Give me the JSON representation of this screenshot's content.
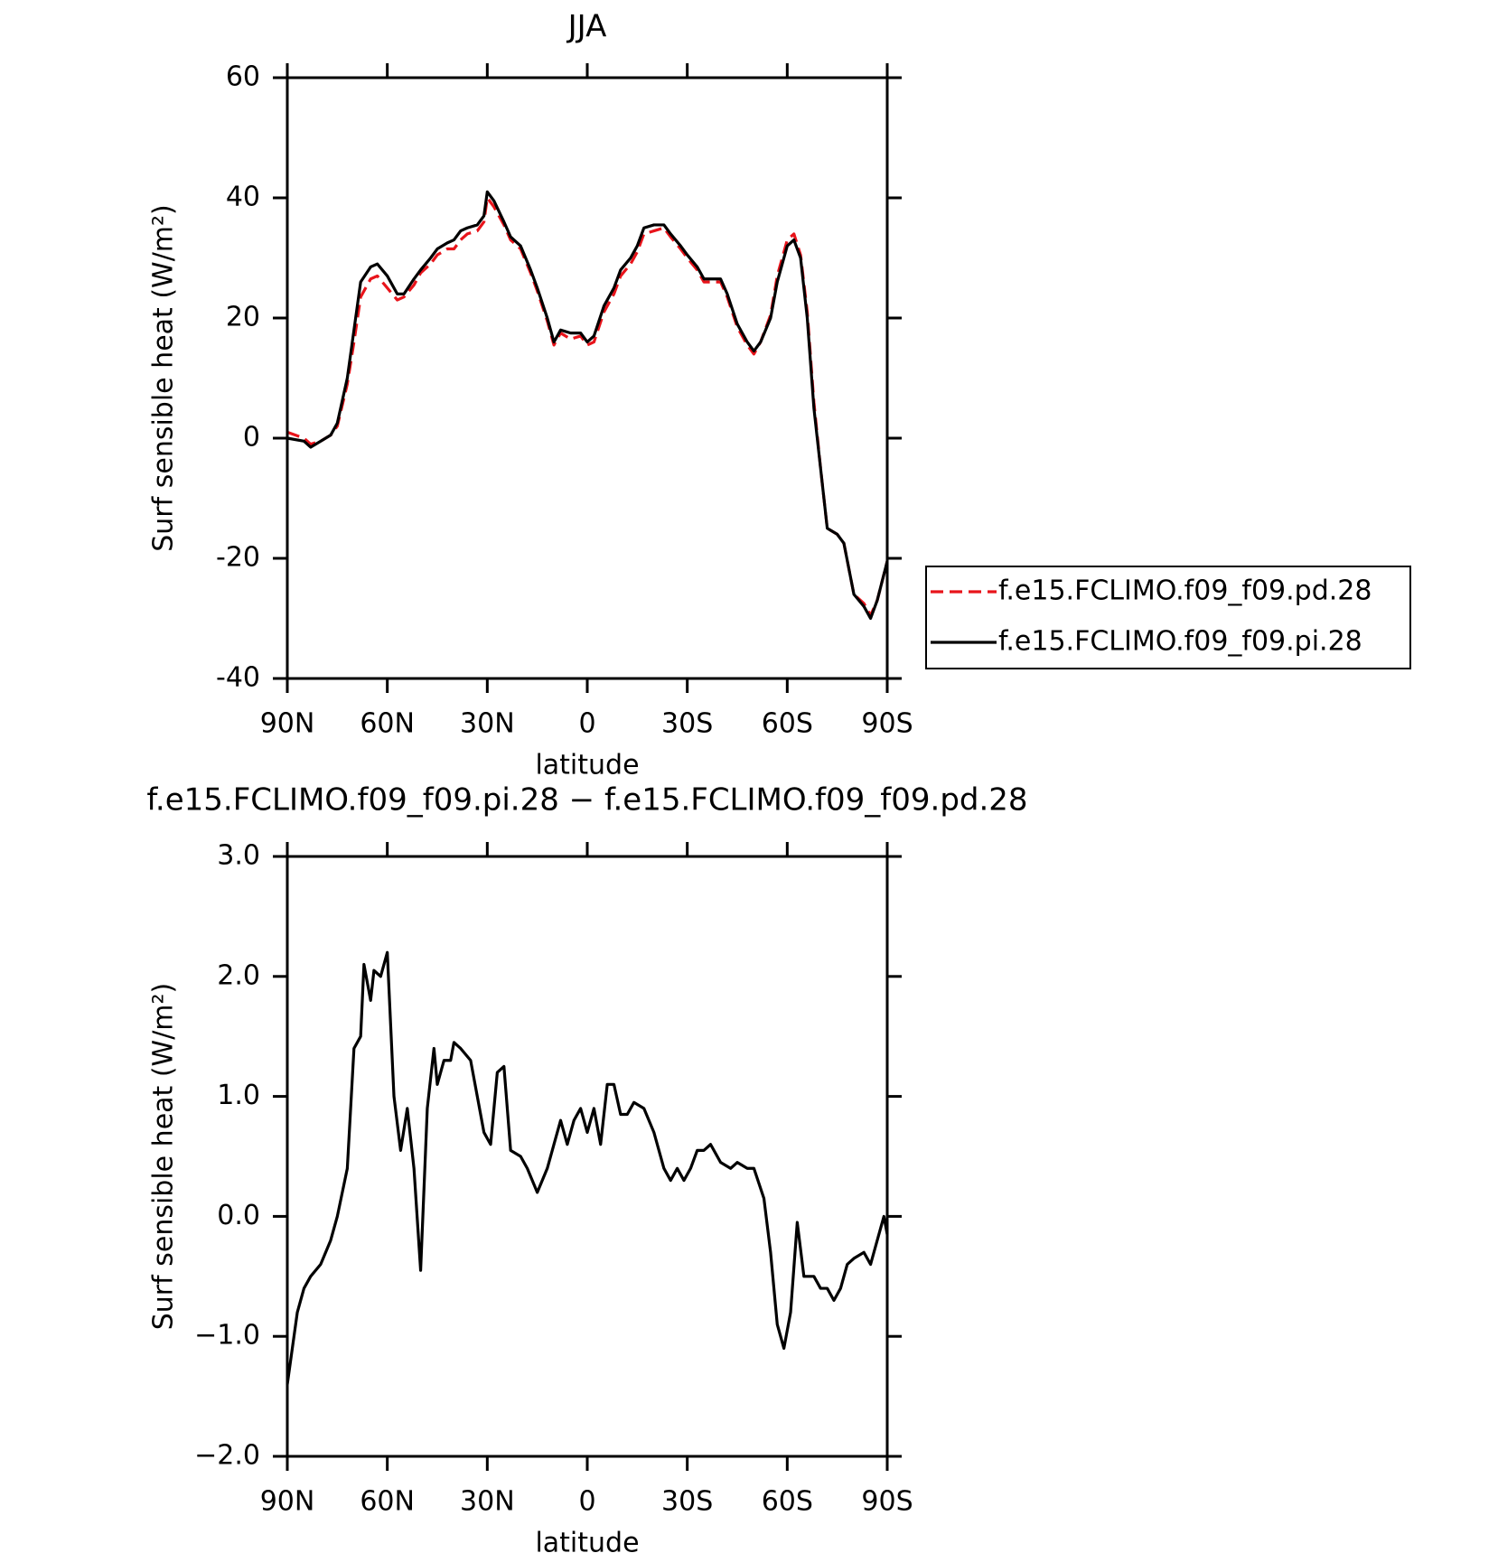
{
  "chart_data": [
    {
      "type": "line",
      "title": "JJA",
      "xlabel": "latitude",
      "ylabel": "Surf sensible heat (W/m²)",
      "x": [
        90,
        85,
        83,
        80,
        77,
        75,
        72,
        70,
        68,
        65,
        63,
        60,
        57,
        55,
        52,
        50,
        47,
        45,
        42,
        40,
        38,
        36,
        33,
        31,
        30,
        28,
        25,
        23,
        20,
        17,
        15,
        12,
        10,
        8,
        5,
        2,
        0,
        -2,
        -5,
        -8,
        -10,
        -13,
        -15,
        -17,
        -20,
        -23,
        -25,
        -28,
        -30,
        -33,
        -35,
        -38,
        -40,
        -42,
        -45,
        -48,
        -50,
        -52,
        -55,
        -57,
        -60,
        -62,
        -64,
        -66,
        -68,
        -70,
        -72,
        -75,
        -77,
        -80,
        -83,
        -85,
        -87,
        -90
      ],
      "series": [
        {
          "name": "f.e15.FCLIMO.f09_f09.pd.28",
          "color": "#e8141b",
          "dash": true,
          "values": [
            1,
            0,
            -1,
            -0.5,
            0.5,
            2,
            9,
            16,
            23.5,
            26.5,
            27,
            25,
            23,
            23.5,
            25.5,
            27.5,
            29,
            30.5,
            31.5,
            31.5,
            33,
            34,
            34.5,
            36,
            40,
            38.5,
            35.5,
            33,
            31.5,
            27.5,
            24.5,
            19.5,
            15.5,
            17.5,
            16.5,
            17,
            15.5,
            16,
            21,
            24,
            27,
            29,
            31,
            34,
            34.5,
            35,
            33.5,
            31.5,
            30,
            28,
            26,
            26,
            26,
            23.5,
            18.5,
            15.5,
            14,
            16,
            20.5,
            27,
            33,
            34,
            30.5,
            21,
            6,
            -5,
            -15,
            -16,
            -17.5,
            -26,
            -27.5,
            -29.5,
            -27,
            -20.5
          ]
        },
        {
          "name": "f.e15.FCLIMO.f09_f09.pi.28",
          "color": "#000000",
          "dash": false,
          "values": [
            0,
            -0.5,
            -1.5,
            -0.5,
            0.5,
            2.5,
            10,
            18,
            26,
            28.5,
            29,
            27,
            24,
            24,
            26.5,
            28,
            30,
            31.5,
            32.5,
            33,
            34.5,
            35,
            35.5,
            37,
            41,
            39.5,
            36,
            33.5,
            32,
            28,
            25,
            20,
            16,
            18,
            17.5,
            17.5,
            16,
            17,
            22,
            25,
            28,
            30,
            32,
            35,
            35.5,
            35.5,
            34,
            32,
            30.5,
            28.5,
            26.5,
            26.5,
            26.5,
            24,
            19,
            16,
            14.5,
            16,
            20,
            26,
            32,
            33,
            30,
            20,
            5,
            -5,
            -15,
            -16,
            -17.5,
            -26,
            -28,
            -30,
            -27,
            -20.5
          ]
        }
      ],
      "xlim": [
        90,
        -90
      ],
      "xticks": [
        {
          "value": 90,
          "label": "90N"
        },
        {
          "value": 60,
          "label": "60N"
        },
        {
          "value": 30,
          "label": "30N"
        },
        0,
        {
          "value": -30,
          "label": "30S"
        },
        {
          "value": -60,
          "label": "60S"
        },
        {
          "value": -90,
          "label": "90S"
        }
      ],
      "ylim": [
        -40,
        60
      ],
      "yticks": [
        -40,
        -20,
        0,
        20,
        40,
        60
      ],
      "legend": "right"
    },
    {
      "type": "line",
      "title": "f.e15.FCLIMO.f09_f09.pi.28 − f.e15.FCLIMO.f09_f09.pd.28",
      "xlabel": "latitude",
      "ylabel": "Surf sensible heat (W/m²)",
      "x": [
        90,
        87,
        85,
        83,
        80,
        77,
        75,
        72,
        70,
        68,
        67,
        65,
        64,
        62,
        60,
        58,
        56,
        54,
        52,
        50,
        48,
        46,
        45,
        43,
        41,
        40,
        38,
        35,
        33,
        31,
        29,
        27,
        25,
        23,
        20,
        18,
        15,
        12,
        10,
        8,
        6,
        4,
        2,
        0,
        -2,
        -4,
        -6,
        -8,
        -10,
        -12,
        -14,
        -17,
        -20,
        -23,
        -25,
        -27,
        -29,
        -31,
        -33,
        -35,
        -37,
        -40,
        -43,
        -45,
        -48,
        -50,
        -53,
        -55,
        -57,
        -59,
        -61,
        -63,
        -65,
        -68,
        -70,
        -72,
        -74,
        -76,
        -78,
        -80,
        -83,
        -85,
        -87,
        -89,
        -90
      ],
      "series": [
        {
          "color": "#000000",
          "dash": false,
          "values": [
            -1.4,
            -0.8,
            -0.6,
            -0.5,
            -0.4,
            -0.2,
            0.0,
            0.4,
            1.4,
            1.5,
            2.1,
            1.8,
            2.05,
            2.0,
            2.2,
            1.0,
            0.55,
            0.9,
            0.4,
            -0.45,
            0.9,
            1.4,
            1.1,
            1.3,
            1.3,
            1.45,
            1.4,
            1.3,
            1.0,
            0.7,
            0.6,
            1.2,
            1.25,
            0.55,
            0.5,
            0.4,
            0.2,
            0.4,
            0.6,
            0.8,
            0.6,
            0.8,
            0.9,
            0.7,
            0.9,
            0.6,
            1.1,
            1.1,
            0.85,
            0.85,
            0.95,
            0.9,
            0.7,
            0.4,
            0.3,
            0.4,
            0.3,
            0.4,
            0.55,
            0.55,
            0.6,
            0.45,
            0.4,
            0.45,
            0.4,
            0.4,
            0.15,
            -0.3,
            -0.9,
            -1.1,
            -0.8,
            -0.05,
            -0.5,
            -0.5,
            -0.6,
            -0.6,
            -0.7,
            -0.6,
            -0.4,
            -0.35,
            -0.3,
            -0.4,
            -0.2,
            0.0,
            -0.15
          ]
        }
      ],
      "xlim": [
        90,
        -90
      ],
      "xticks": [
        {
          "value": 90,
          "label": "90N"
        },
        {
          "value": 60,
          "label": "60N"
        },
        {
          "value": 30,
          "label": "30N"
        },
        0,
        {
          "value": -30,
          "label": "30S"
        },
        {
          "value": -60,
          "label": "60S"
        },
        {
          "value": -90,
          "label": "90S"
        }
      ],
      "ylim": [
        -2,
        3
      ],
      "yticks": [
        {
          "value": -2,
          "label": "−2.0"
        },
        {
          "value": -1,
          "label": "−1.0"
        },
        {
          "value": 0,
          "label": "0.0"
        },
        {
          "value": 1,
          "label": "1.0"
        },
        {
          "value": 2,
          "label": "2.0"
        },
        {
          "value": 3,
          "label": "3.0"
        }
      ]
    }
  ]
}
